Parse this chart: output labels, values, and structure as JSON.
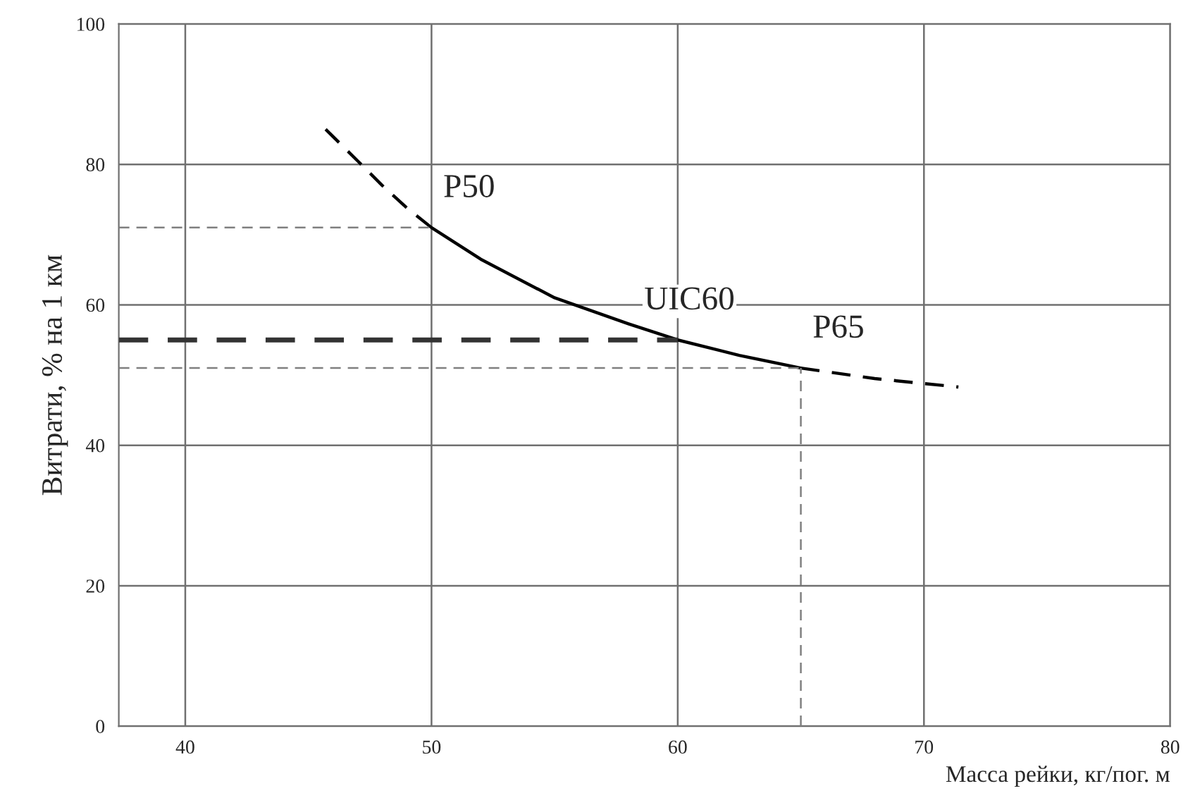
{
  "chart_data": {
    "type": "line",
    "xlabel": "Масса рейки, кг/пог. м",
    "ylabel": "Витрати, % на 1 км",
    "xlim": [
      37.3,
      80
    ],
    "xticks": [
      40,
      50,
      60,
      70,
      80
    ],
    "ylim": [
      0,
      100
    ],
    "yticks": [
      0,
      20,
      40,
      60,
      80,
      100
    ],
    "grid": true,
    "series": [
      {
        "color": "#000000",
        "line_style": "dashed",
        "x": [
          45.7,
          47,
          48,
          49,
          50
        ],
        "values": [
          85,
          80.5,
          77,
          73.8,
          71
        ]
      },
      {
        "color": "#000000",
        "line_style": "solid",
        "x": [
          50,
          52,
          55,
          58,
          60,
          62.5,
          65
        ],
        "values": [
          71,
          66.5,
          61,
          57.3,
          55,
          52.8,
          51
        ]
      },
      {
        "color": "#000000",
        "line_style": "dashed",
        "x": [
          65,
          68,
          71.4
        ],
        "values": [
          51,
          49.5,
          48.3
        ]
      },
      {
        "color": "#808080",
        "line_style": "dashed",
        "x": [
          37.3,
          50
        ],
        "values": [
          71,
          71
        ]
      },
      {
        "color": "#333333",
        "line_style": "dashed",
        "x": [
          37.3,
          60
        ],
        "values": [
          55,
          55
        ]
      },
      {
        "color": "#808080",
        "line_style": "dashed",
        "x": [
          37.3,
          65
        ],
        "values": [
          51,
          51
        ]
      },
      {
        "color": "#808080",
        "line_style": "dashed",
        "x": [
          65,
          65
        ],
        "values": [
          0,
          51
        ]
      }
    ],
    "annotations": [
      {
        "text": "P50",
        "x": 50,
        "y": 71
      },
      {
        "text": "UIC60",
        "x": 60,
        "y": 55
      },
      {
        "text": "P65",
        "x": 65,
        "y": 51
      }
    ]
  }
}
